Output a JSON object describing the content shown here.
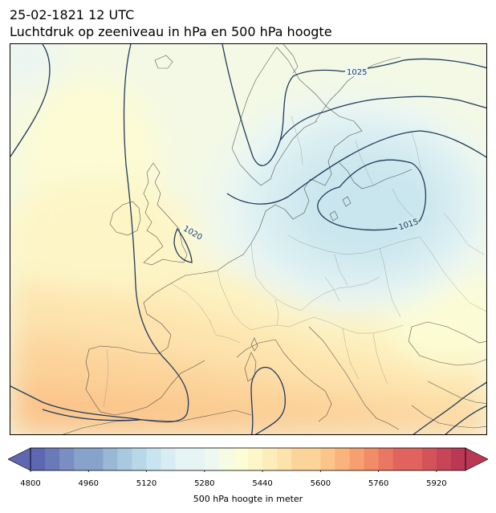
{
  "title_line1": "25-02-1821 12 UTC",
  "title_line2": "Luchtdruk op zeeniveau in hPa en 500 hPa hoogte",
  "isobar_labels": [
    "1025",
    "1020",
    "1015"
  ],
  "colorbar": {
    "label": "500 hPa hoogte in meter",
    "min": 4800,
    "max": 6000,
    "step": 40,
    "ticks": [
      "4800",
      "4960",
      "5120",
      "5280",
      "5440",
      "5600",
      "5760",
      "5920"
    ],
    "colors": [
      "#5e67b0",
      "#6a7ab8",
      "#7a8ec2",
      "#87a3cb",
      "#98b8d5",
      "#a8c9e0",
      "#b8d8e8",
      "#c8e4ee",
      "#d8edf3",
      "#e6f4f6",
      "#eef8f1",
      "#f6fbe4",
      "#fcfcd6",
      "#fdf6c8",
      "#fdedbb",
      "#fde2ab",
      "#fcd49a",
      "#fbc48a",
      "#f9b37d",
      "#f6a072",
      "#f18c68",
      "#ea7762",
      "#e0645d",
      "#d45359",
      "#c84457",
      "#bb3855"
    ]
  },
  "map": {
    "background_color": "#f4f9e8",
    "isobar_color": "#1f3a5a",
    "coast_color": "#333333",
    "border_color": "#8a8a8a"
  }
}
